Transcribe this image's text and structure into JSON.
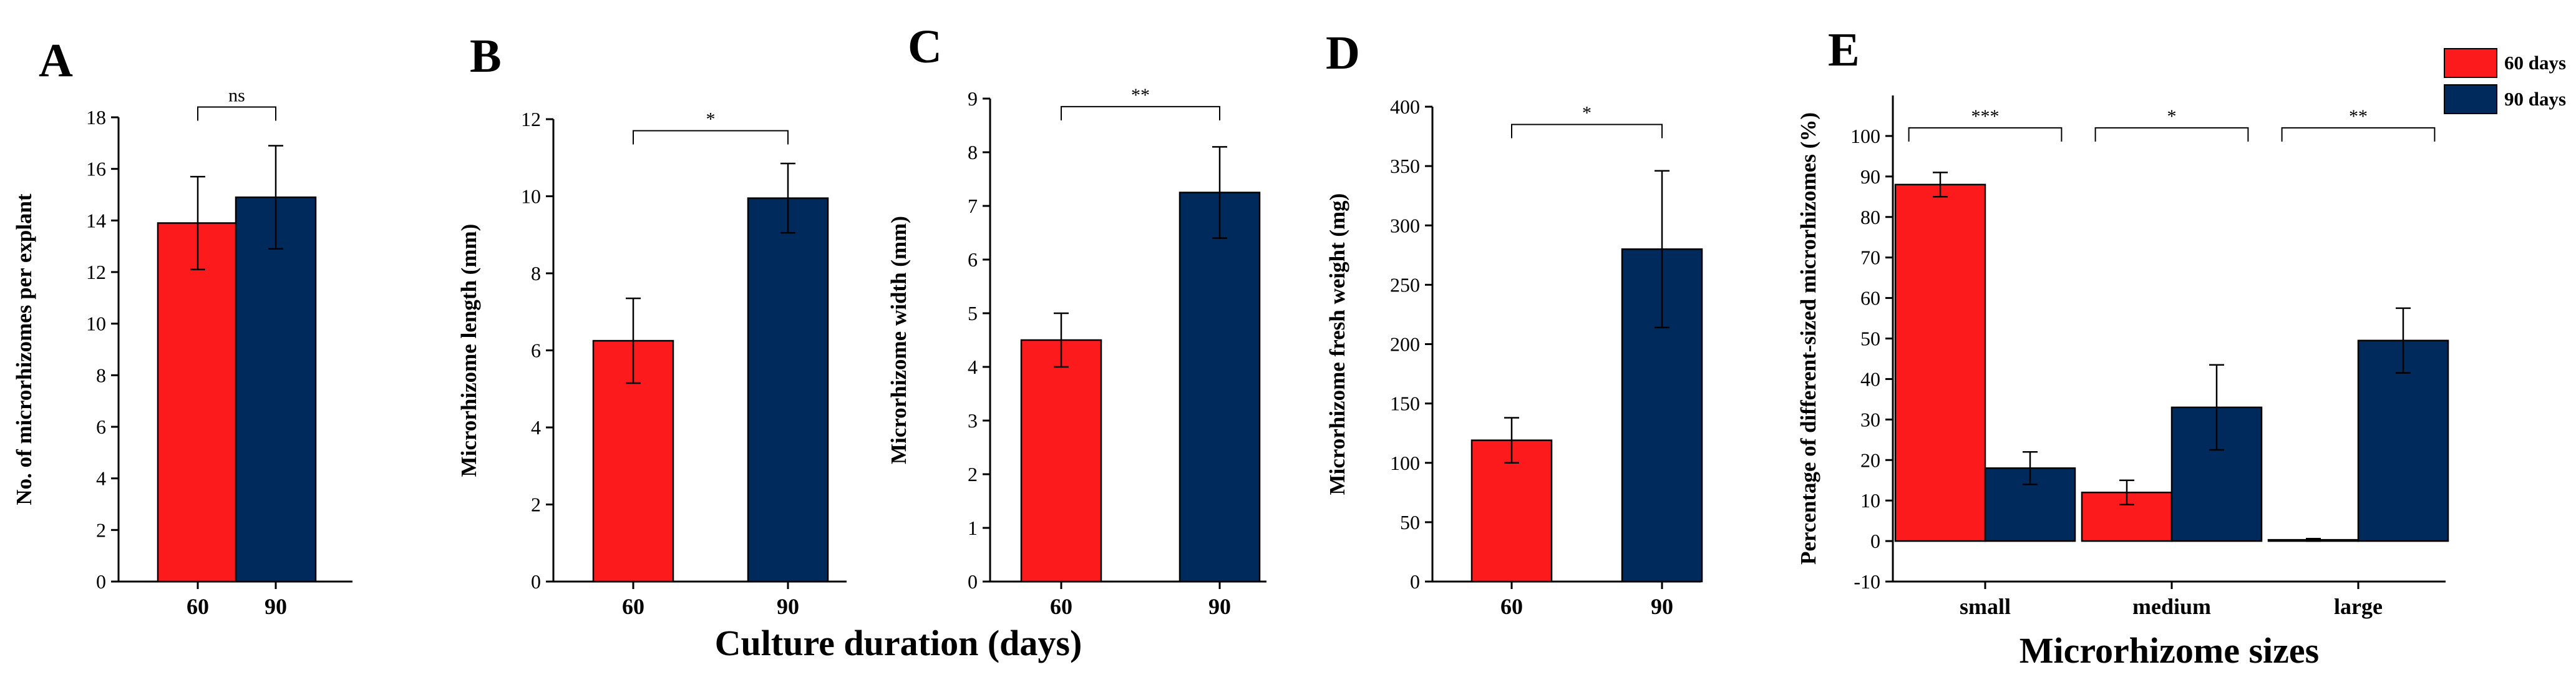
{
  "chart_data": [
    {
      "panel": "A",
      "type": "bar",
      "ylabel": "No. of microrhizomes per explant",
      "ylim": [
        0,
        18
      ],
      "yticks": [
        0,
        2,
        4,
        6,
        8,
        10,
        12,
        14,
        16,
        18
      ],
      "categories": [
        "60",
        "90"
      ],
      "series": [
        {
          "name": "Culture duration",
          "values": [
            13.9,
            14.9
          ],
          "errors": [
            1.8,
            2.0
          ],
          "colors": [
            "#fd1a1c",
            "#012a5c"
          ]
        }
      ],
      "significance": [
        {
          "from": 0,
          "to": 1,
          "label": "ns",
          "y": 18.4
        }
      ]
    },
    {
      "panel": "B",
      "type": "bar",
      "ylabel": "Microrhizome length (mm)",
      "ylim": [
        0,
        12
      ],
      "yticks": [
        0,
        2,
        4,
        6,
        8,
        10,
        12
      ],
      "categories": [
        "60",
        "90"
      ],
      "series": [
        {
          "name": "Culture duration",
          "values": [
            6.25,
            9.95
          ],
          "errors": [
            1.1,
            0.9
          ],
          "colors": [
            "#fd1a1c",
            "#012a5c"
          ]
        }
      ],
      "significance": [
        {
          "from": 0,
          "to": 1,
          "label": "*",
          "y": 11.7
        }
      ]
    },
    {
      "panel": "C",
      "type": "bar",
      "ylabel": "Microrhizome width (mm)",
      "ylim": [
        0,
        9
      ],
      "yticks": [
        0,
        1,
        2,
        3,
        4,
        5,
        6,
        7,
        8,
        9
      ],
      "categories": [
        "60",
        "90"
      ],
      "series": [
        {
          "name": "Culture duration",
          "values": [
            4.5,
            7.25
          ],
          "errors": [
            0.5,
            0.85
          ],
          "colors": [
            "#fd1a1c",
            "#012a5c"
          ]
        }
      ],
      "significance": [
        {
          "from": 0,
          "to": 1,
          "label": "**",
          "y": 8.85
        }
      ]
    },
    {
      "panel": "D",
      "type": "bar",
      "ylabel": "Microrhizome fresh weight (mg)",
      "ylim": [
        0,
        400
      ],
      "yticks": [
        0,
        50,
        100,
        150,
        200,
        250,
        300,
        350,
        400
      ],
      "categories": [
        "60",
        "90"
      ],
      "series": [
        {
          "name": "Culture duration",
          "values": [
            119,
            280
          ],
          "errors": [
            19,
            66
          ],
          "colors": [
            "#fd1a1c",
            "#012a5c"
          ]
        }
      ],
      "significance": [
        {
          "from": 0,
          "to": 1,
          "label": "*",
          "y": 385
        }
      ]
    },
    {
      "panel": "E",
      "type": "bar",
      "ylabel": "Percentage of different-sized microrhizomes (%)",
      "xlabel": "Microrhizome sizes",
      "ylim": [
        -10,
        110
      ],
      "yticks": [
        -10,
        0,
        10,
        20,
        30,
        40,
        50,
        60,
        70,
        80,
        90,
        100
      ],
      "categories": [
        "small",
        "medium",
        "large"
      ],
      "series": [
        {
          "name": "60 days",
          "values": [
            88,
            12,
            0.3
          ],
          "errors": [
            3,
            3,
            0.3
          ],
          "color": "#fd1a1c"
        },
        {
          "name": "90 days",
          "values": [
            18,
            33,
            49.5
          ],
          "errors": [
            4,
            10.5,
            8
          ],
          "color": "#012a5c"
        }
      ],
      "significance": [
        {
          "category": 0,
          "label": "***",
          "y": 102
        },
        {
          "category": 1,
          "label": "*",
          "y": 102
        },
        {
          "category": 2,
          "label": "**",
          "y": 102
        }
      ],
      "legend": {
        "position": "top-right"
      }
    }
  ],
  "shared_xlabel": "Culture duration (days)"
}
